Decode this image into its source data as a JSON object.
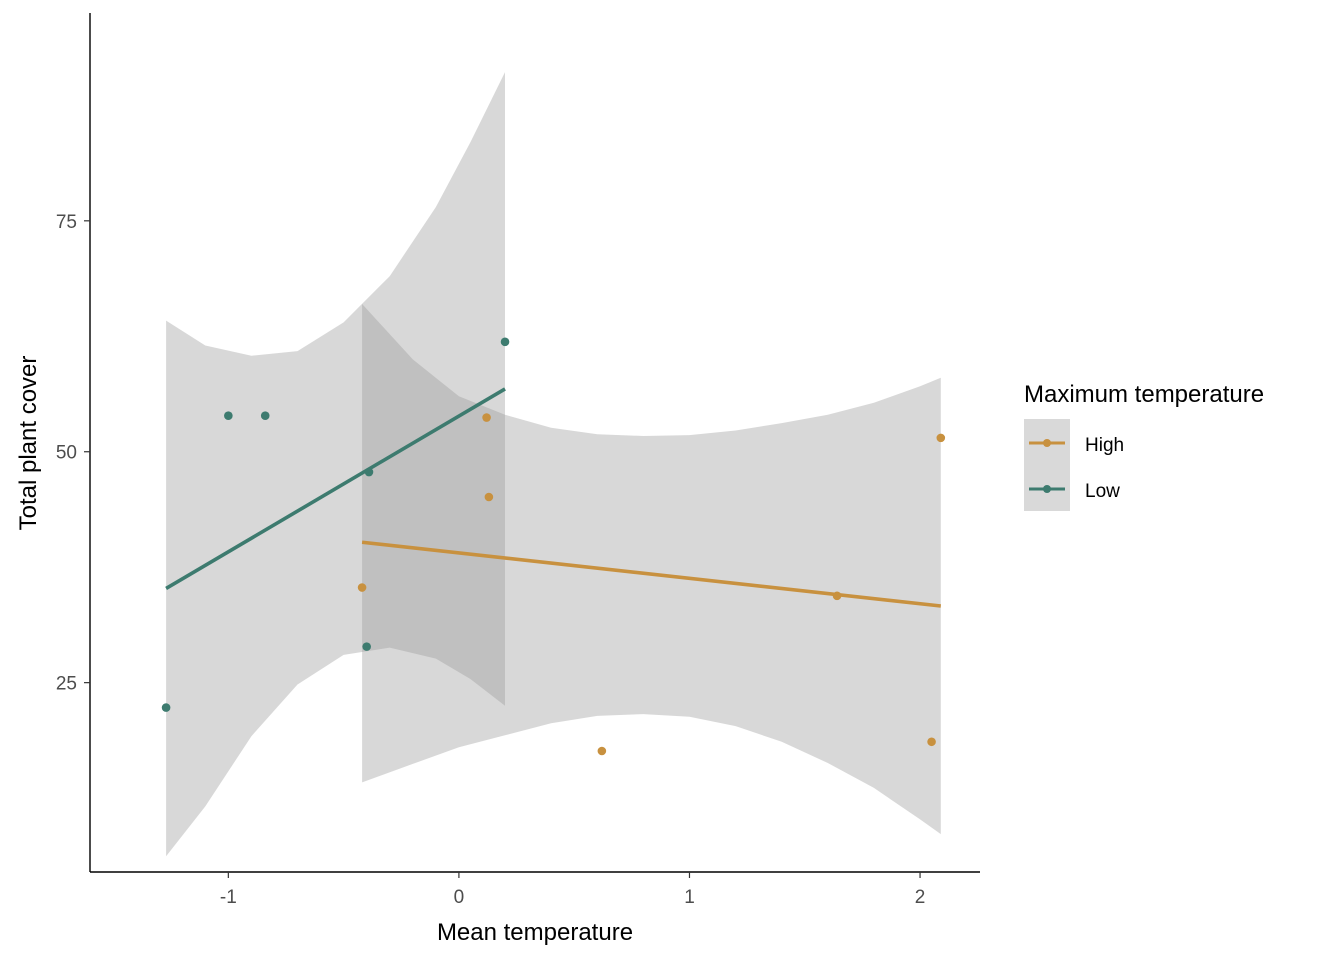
{
  "chart_data": {
    "type": "scatter",
    "title": "",
    "xlabel": "Mean temperature",
    "ylabel": "Total plant cover",
    "xlim": [
      -1.6,
      2.26
    ],
    "ylim": [
      4.5,
      97.5
    ],
    "xticks": [
      -1,
      0,
      1,
      2
    ],
    "xtick_labels": [
      "-1",
      "0",
      "1",
      "2"
    ],
    "yticks": [
      25,
      50,
      75
    ],
    "ytick_labels": [
      "25",
      "50",
      "75"
    ],
    "grid": false,
    "legend": {
      "title": "Maximum temperature",
      "placement": "right",
      "entries": [
        "High",
        "Low"
      ]
    },
    "series": [
      {
        "name": "High",
        "color": "#c8913f",
        "points": [
          {
            "x": -0.42,
            "y": 35.3
          },
          {
            "x": 0.12,
            "y": 53.7
          },
          {
            "x": 0.13,
            "y": 45.1
          },
          {
            "x": 0.62,
            "y": 17.6
          },
          {
            "x": 1.64,
            "y": 34.4
          },
          {
            "x": 2.05,
            "y": 18.6
          },
          {
            "x": 2.09,
            "y": 51.5
          }
        ],
        "fit": {
          "x": [
            -0.42,
            2.09
          ],
          "y": [
            40.2,
            33.3
          ]
        },
        "ci_band": {
          "x": [
            -0.42,
            -0.2,
            0.0,
            0.2,
            0.4,
            0.6,
            0.8,
            1.0,
            1.2,
            1.4,
            1.6,
            1.8,
            2.0,
            2.09
          ],
          "upper": [
            66.0,
            60.0,
            56.0,
            54.0,
            52.6,
            51.9,
            51.7,
            51.8,
            52.3,
            53.1,
            54.0,
            55.3,
            57.1,
            58.0
          ],
          "lower": [
            14.2,
            16.2,
            18.0,
            19.3,
            20.6,
            21.4,
            21.6,
            21.3,
            20.3,
            18.6,
            16.3,
            13.6,
            10.2,
            8.6
          ]
        }
      },
      {
        "name": "Low",
        "color": "#3d7b6f",
        "points": [
          {
            "x": -1.27,
            "y": 22.3
          },
          {
            "x": -1.0,
            "y": 53.9
          },
          {
            "x": -0.84,
            "y": 53.9
          },
          {
            "x": -0.4,
            "y": 28.9
          },
          {
            "x": -0.39,
            "y": 47.8
          },
          {
            "x": 0.2,
            "y": 61.9
          }
        ],
        "fit": {
          "x": [
            -1.27,
            0.2
          ],
          "y": [
            35.2,
            56.8
          ]
        },
        "ci_band": {
          "x": [
            -1.27,
            -1.1,
            -0.9,
            -0.7,
            -0.5,
            -0.3,
            -0.1,
            0.05,
            0.2
          ],
          "upper": [
            64.2,
            61.5,
            60.4,
            60.9,
            64.0,
            69.0,
            76.5,
            83.5,
            91.1
          ],
          "lower": [
            6.2,
            11.6,
            19.2,
            24.8,
            28.0,
            28.8,
            27.6,
            25.4,
            22.5
          ]
        }
      }
    ]
  }
}
